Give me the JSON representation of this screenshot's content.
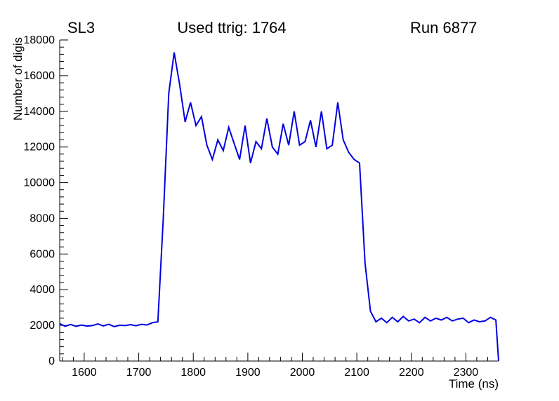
{
  "header": {
    "left": "SL3",
    "center": "Used ttrig: 1764",
    "right": "Run 6877"
  },
  "chart_data": {
    "type": "line",
    "title": "",
    "xlabel": "Time (ns)",
    "ylabel": "Number of digis",
    "xlim": [
      1555,
      2360
    ],
    "ylim": [
      0,
      18000
    ],
    "x_ticks": [
      1600,
      1700,
      1800,
      1900,
      2000,
      2100,
      2200,
      2300
    ],
    "x_major_step": 100,
    "x_minor_step": 20,
    "y_ticks": [
      0,
      2000,
      4000,
      6000,
      8000,
      10000,
      12000,
      14000,
      16000,
      18000
    ],
    "y_major_step": 2000,
    "y_minor_step": 400,
    "grid": false,
    "legend": "none",
    "line_color": "#0000e0",
    "axis_color": "#000000",
    "points": [
      [
        1555,
        2100
      ],
      [
        1565,
        1950
      ],
      [
        1575,
        2050
      ],
      [
        1585,
        1950
      ],
      [
        1595,
        2020
      ],
      [
        1605,
        1960
      ],
      [
        1615,
        1990
      ],
      [
        1625,
        2080
      ],
      [
        1635,
        1970
      ],
      [
        1645,
        2060
      ],
      [
        1655,
        1930
      ],
      [
        1665,
        2010
      ],
      [
        1675,
        1990
      ],
      [
        1685,
        2040
      ],
      [
        1695,
        1980
      ],
      [
        1705,
        2060
      ],
      [
        1715,
        2020
      ],
      [
        1725,
        2150
      ],
      [
        1735,
        2200
      ],
      [
        1745,
        8000
      ],
      [
        1755,
        15000
      ],
      [
        1765,
        17300
      ],
      [
        1775,
        15500
      ],
      [
        1785,
        13400
      ],
      [
        1795,
        14500
      ],
      [
        1805,
        13200
      ],
      [
        1815,
        13700
      ],
      [
        1825,
        12100
      ],
      [
        1835,
        11300
      ],
      [
        1845,
        12400
      ],
      [
        1855,
        11800
      ],
      [
        1865,
        13100
      ],
      [
        1875,
        12200
      ],
      [
        1885,
        11300
      ],
      [
        1895,
        13200
      ],
      [
        1905,
        11100
      ],
      [
        1915,
        12300
      ],
      [
        1925,
        11900
      ],
      [
        1935,
        13600
      ],
      [
        1945,
        12000
      ],
      [
        1955,
        11600
      ],
      [
        1965,
        13300
      ],
      [
        1975,
        12100
      ],
      [
        1985,
        14000
      ],
      [
        1995,
        12100
      ],
      [
        2005,
        12300
      ],
      [
        2015,
        13500
      ],
      [
        2025,
        12000
      ],
      [
        2035,
        14000
      ],
      [
        2045,
        11900
      ],
      [
        2055,
        12100
      ],
      [
        2065,
        14500
      ],
      [
        2075,
        12400
      ],
      [
        2085,
        11700
      ],
      [
        2095,
        11300
      ],
      [
        2105,
        11100
      ],
      [
        2115,
        5500
      ],
      [
        2125,
        2800
      ],
      [
        2135,
        2200
      ],
      [
        2145,
        2400
      ],
      [
        2155,
        2150
      ],
      [
        2165,
        2450
      ],
      [
        2175,
        2200
      ],
      [
        2185,
        2500
      ],
      [
        2195,
        2250
      ],
      [
        2205,
        2350
      ],
      [
        2215,
        2150
      ],
      [
        2225,
        2450
      ],
      [
        2235,
        2250
      ],
      [
        2245,
        2400
      ],
      [
        2255,
        2300
      ],
      [
        2265,
        2450
      ],
      [
        2275,
        2250
      ],
      [
        2285,
        2350
      ],
      [
        2295,
        2400
      ],
      [
        2305,
        2150
      ],
      [
        2315,
        2300
      ],
      [
        2325,
        2200
      ],
      [
        2335,
        2250
      ],
      [
        2345,
        2450
      ],
      [
        2355,
        2300
      ],
      [
        2360,
        0
      ]
    ]
  }
}
